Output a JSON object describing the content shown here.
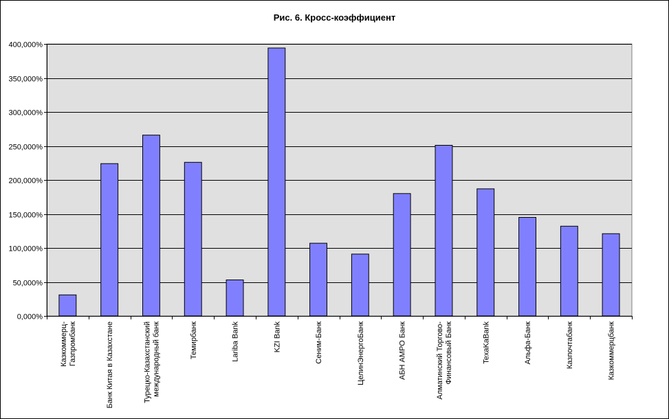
{
  "chart_data": {
    "type": "bar",
    "title": "Рис. 6. Кросс-коэффициент",
    "xlabel": "",
    "ylabel": "",
    "ylim": [
      0,
      400
    ],
    "y_ticks": [
      "0,000%",
      "50,000%",
      "100,000%",
      "150,000%",
      "200,000%",
      "250,000%",
      "300,000%",
      "350,000%",
      "400,000%"
    ],
    "grid": true,
    "bar_color": "#8080ff",
    "plot_background": "#e0e0e0",
    "categories": [
      [
        "Казкоммерц-",
        "Газпромбанк"
      ],
      [
        "Банк Китая в Казахстане"
      ],
      [
        "Турецко-Казахстанский",
        "международный банк"
      ],
      [
        "Темирбанк"
      ],
      [
        "Lariba Bank"
      ],
      [
        "KZI Bank"
      ],
      [
        "Сеним-Банк"
      ],
      [
        "ЦелинЭнергоБанк"
      ],
      [
        "АБН АМРО Банк"
      ],
      [
        "Алматинский Торгово-",
        "Финансовый Банк"
      ],
      [
        "TexaKaBank"
      ],
      [
        "Альфа-Банк"
      ],
      [
        "Казпочтабанк"
      ],
      [
        "Казкоммерцбанк"
      ]
    ],
    "values": [
      31,
      224,
      266,
      226,
      53,
      394,
      107,
      91,
      180,
      251,
      187,
      145,
      132,
      121
    ]
  }
}
